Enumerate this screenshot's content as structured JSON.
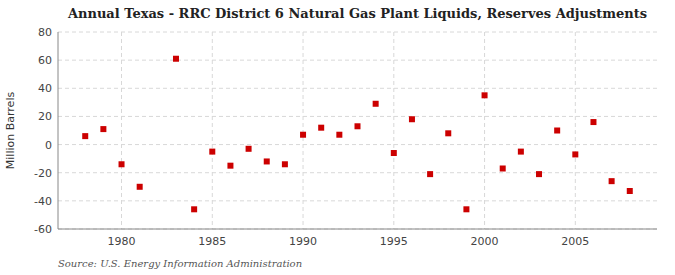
{
  "chart_data": {
    "type": "scatter",
    "title": "Annual Texas - RRC District 6 Natural Gas Plant Liquids, Reserves Adjustments",
    "ylabel": "Million Barrels",
    "annotations": [
      "Source: U.S. Energy Information Administration"
    ],
    "x": [
      1978,
      1979,
      1980,
      1981,
      1983,
      1984,
      1985,
      1986,
      1987,
      1988,
      1989,
      1990,
      1991,
      1992,
      1993,
      1994,
      1995,
      1996,
      1997,
      1998,
      1999,
      2000,
      2001,
      2002,
      2003,
      2004,
      2005,
      2006,
      2007,
      2008
    ],
    "values": [
      6,
      11,
      -14,
      -30,
      61,
      -46,
      -5,
      -15,
      -3,
      -12,
      -14,
      7,
      12,
      7,
      13,
      29,
      -6,
      18,
      -21,
      8,
      -46,
      35,
      -17,
      -5,
      -21,
      10,
      -7,
      16,
      -26,
      -33
    ],
    "color": "#CC0000",
    "marker": "square",
    "xlim": [
      1976.5,
      2009.5
    ],
    "ylim": [
      -60,
      80
    ],
    "xticks": [
      1980,
      1985,
      1990,
      1995,
      2000,
      2005
    ],
    "yticks": [
      -60,
      -40,
      -20,
      0,
      20,
      40,
      60,
      80
    ],
    "grid": true
  }
}
